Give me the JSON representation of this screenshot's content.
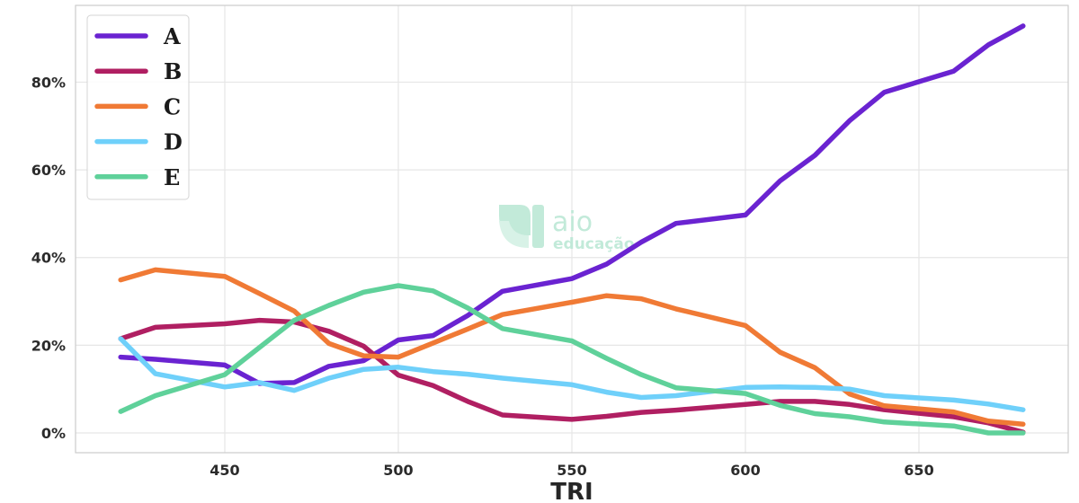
{
  "chart_data": {
    "type": "line",
    "xlabel": "TRI",
    "ylabel": "",
    "xlim": [
      407,
      693
    ],
    "ylim": [
      -0.045,
      0.975
    ],
    "x_ticks": [
      450,
      500,
      550,
      600,
      650
    ],
    "y_ticks": [
      0,
      0.2,
      0.4,
      0.6,
      0.8
    ],
    "y_tick_labels": [
      "0%",
      "20%",
      "40%",
      "60%",
      "80%"
    ],
    "grid": true,
    "legend_position": "top-left",
    "watermark": {
      "title": "aio",
      "subtitle": "educação",
      "color": "#bfe9d8"
    },
    "x": [
      420,
      430,
      450,
      460,
      470,
      480,
      490,
      500,
      510,
      520,
      530,
      550,
      560,
      570,
      580,
      600,
      610,
      620,
      630,
      640,
      660,
      670,
      680
    ],
    "series": [
      {
        "name": "A",
        "color": "#6a23d1",
        "values": [
          0.173,
          0.168,
          0.155,
          0.113,
          0.115,
          0.152,
          0.165,
          0.212,
          0.222,
          0.268,
          0.323,
          0.352,
          0.385,
          0.435,
          0.478,
          0.497,
          0.575,
          0.633,
          0.712,
          0.777,
          0.825,
          0.885,
          0.928
        ]
      },
      {
        "name": "B",
        "color": "#b01f62",
        "values": [
          0.215,
          0.241,
          0.249,
          0.257,
          0.253,
          0.232,
          0.198,
          0.132,
          0.108,
          0.072,
          0.041,
          0.031,
          0.038,
          0.047,
          0.052,
          0.065,
          0.072,
          0.072,
          0.065,
          0.053,
          0.037,
          0.023,
          0.002
        ]
      },
      {
        "name": "C",
        "color": "#f07a35",
        "values": [
          0.349,
          0.372,
          0.357,
          0.318,
          0.278,
          0.204,
          0.176,
          0.173,
          0.205,
          0.237,
          0.27,
          0.298,
          0.313,
          0.306,
          0.283,
          0.245,
          0.184,
          0.149,
          0.089,
          0.062,
          0.048,
          0.027,
          0.02
        ]
      },
      {
        "name": "D",
        "color": "#6fd0fa",
        "values": [
          0.215,
          0.135,
          0.105,
          0.115,
          0.097,
          0.125,
          0.145,
          0.15,
          0.14,
          0.134,
          0.125,
          0.11,
          0.093,
          0.081,
          0.085,
          0.104,
          0.105,
          0.104,
          0.1,
          0.085,
          0.075,
          0.066,
          0.053
        ]
      },
      {
        "name": "E",
        "color": "#5fd19a",
        "values": [
          0.049,
          0.085,
          0.133,
          0.195,
          0.257,
          0.291,
          0.321,
          0.336,
          0.324,
          0.285,
          0.238,
          0.21,
          0.17,
          0.133,
          0.103,
          0.09,
          0.063,
          0.044,
          0.037,
          0.025,
          0.016,
          0.0,
          0.0
        ]
      }
    ]
  }
}
